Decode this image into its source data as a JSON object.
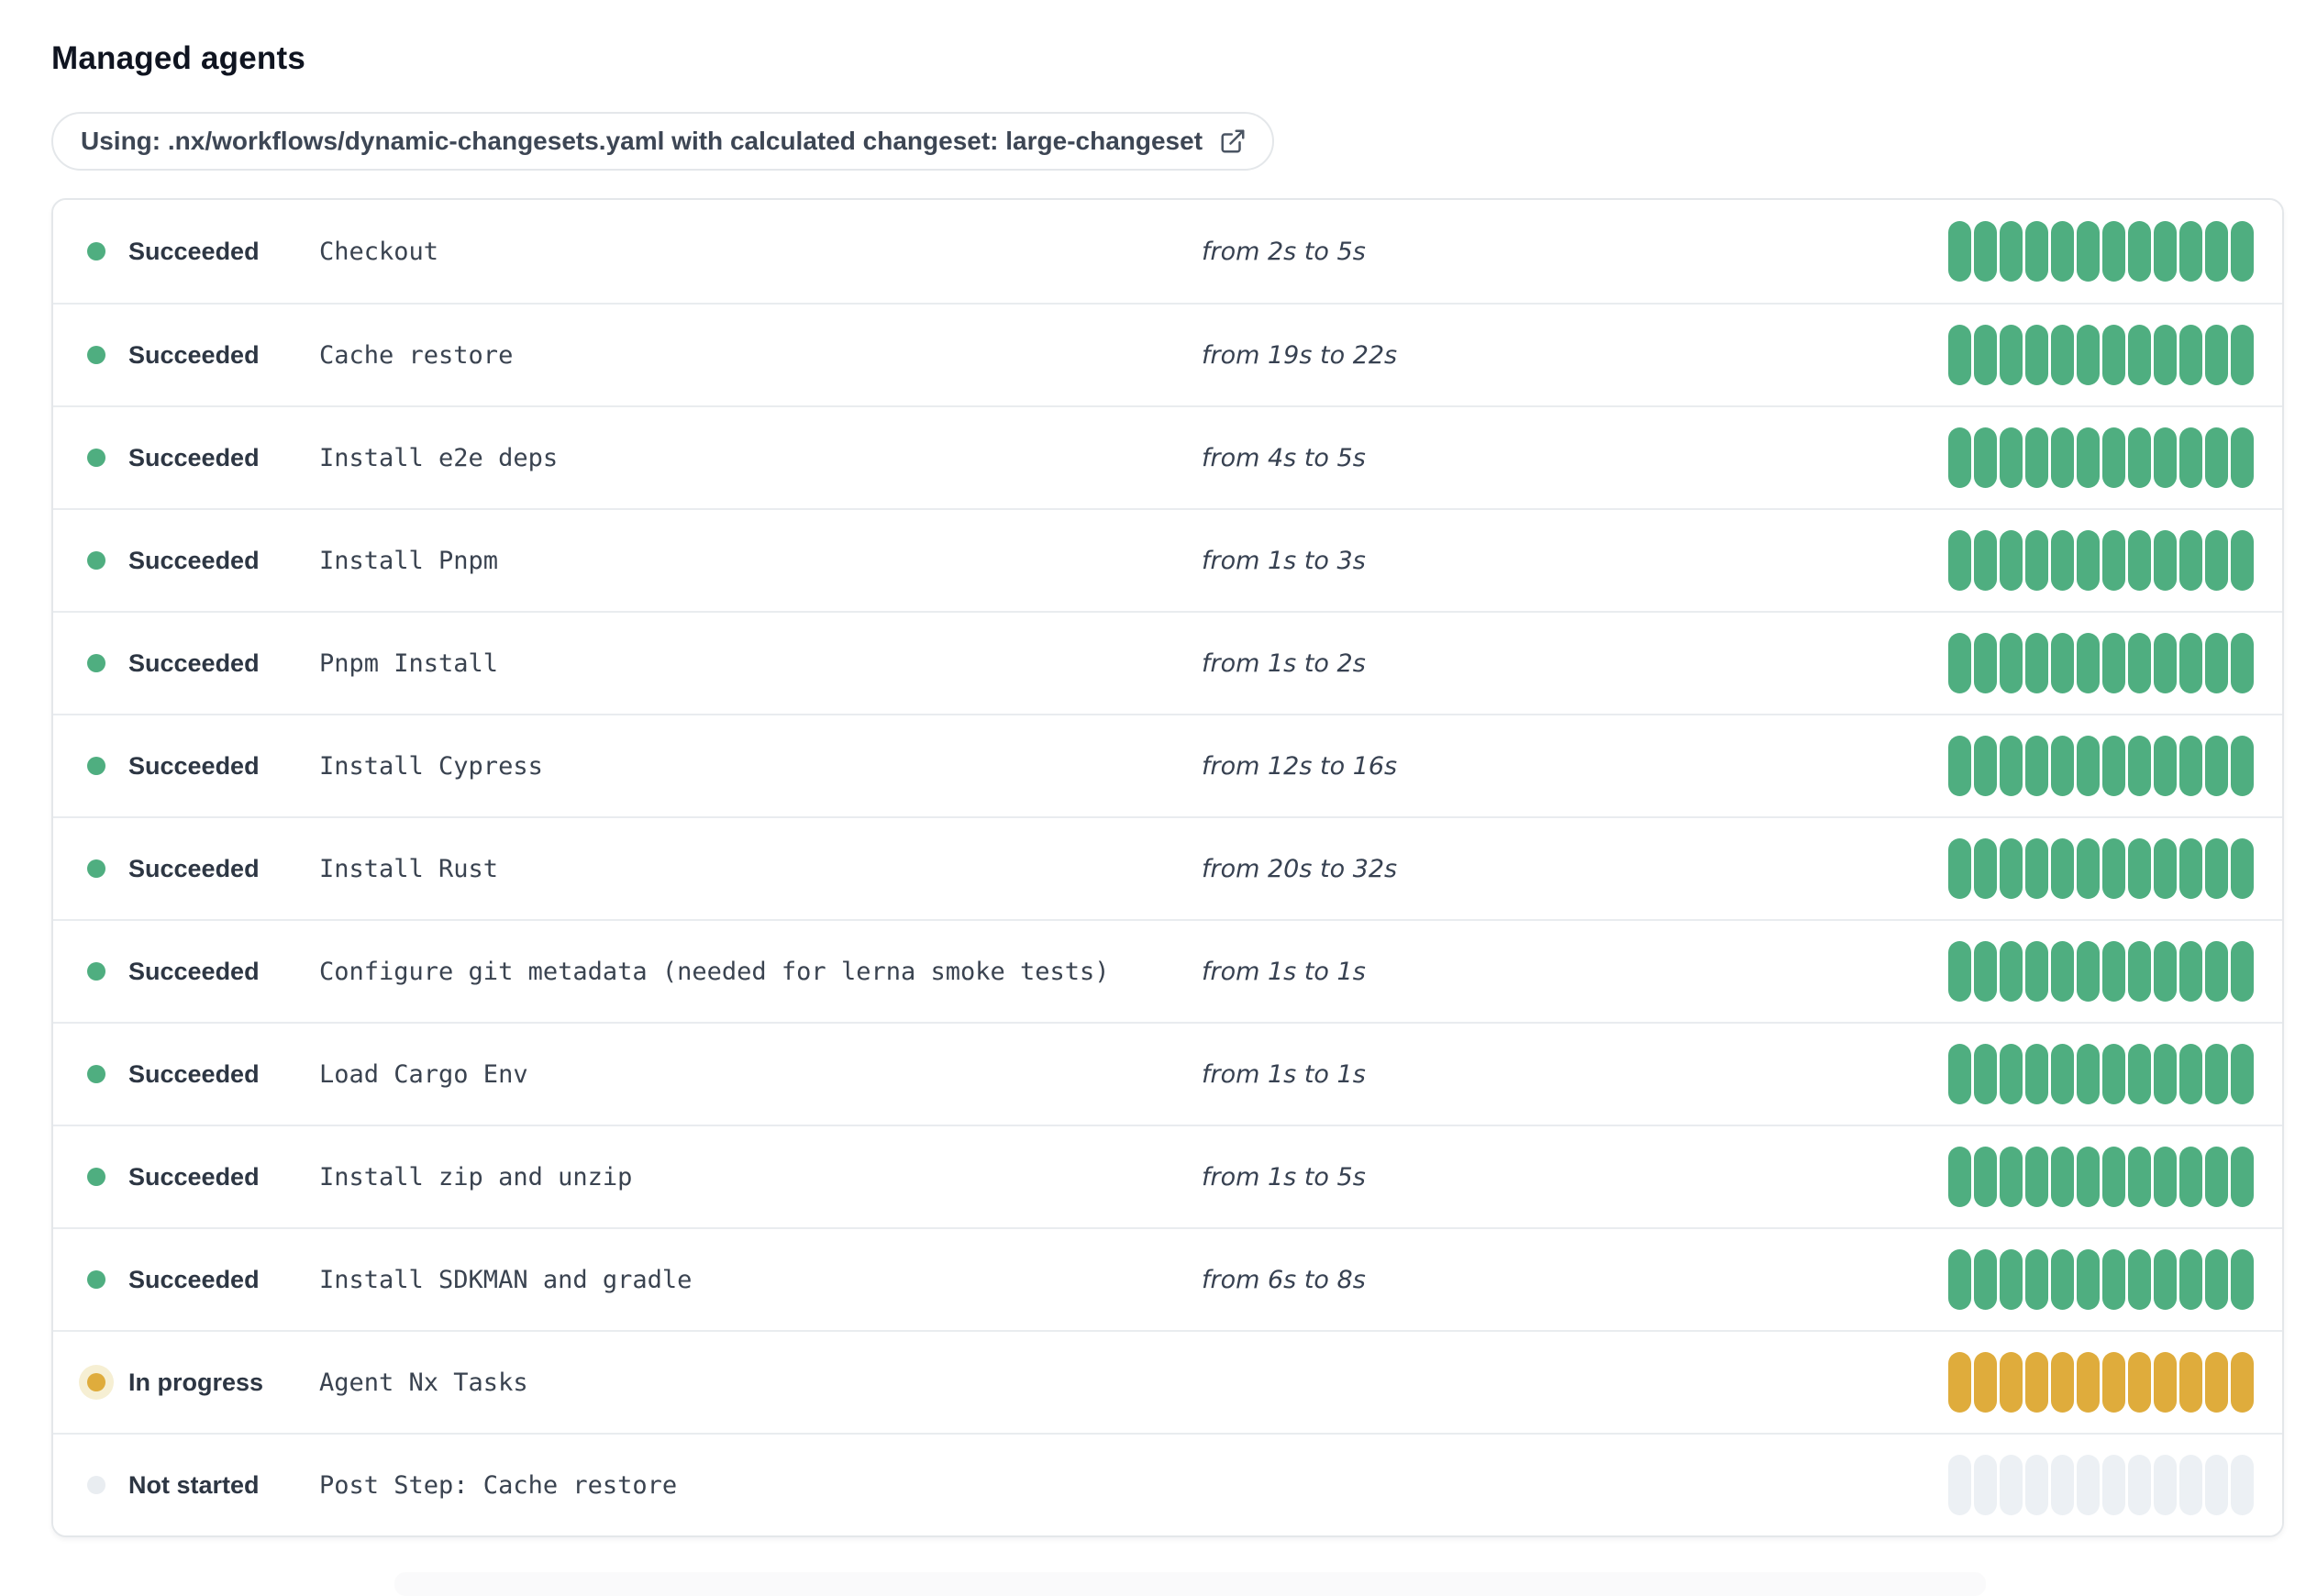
{
  "title": "Managed agents",
  "workflow_banner": {
    "label": "Using: .nx/workflows/dynamic-changesets.yaml with calculated changeset: large-changeset",
    "icon": "external-link-icon"
  },
  "segments_per_row": 12,
  "status_colors": {
    "succeeded": "#4FAE80",
    "in_progress": "#DFAC3C",
    "in_progress_halo": "#F6EFD3",
    "not_started_dot": "#E9EDF1",
    "not_started_segment": "#ECF0F4"
  },
  "rows": [
    {
      "status": "Succeeded",
      "state": "succeeded",
      "step": "Checkout",
      "range": "from 2s to 5s"
    },
    {
      "status": "Succeeded",
      "state": "succeeded",
      "step": "Cache restore",
      "range": "from 19s to 22s"
    },
    {
      "status": "Succeeded",
      "state": "succeeded",
      "step": "Install e2e deps",
      "range": "from 4s to 5s"
    },
    {
      "status": "Succeeded",
      "state": "succeeded",
      "step": "Install Pnpm",
      "range": "from 1s to 3s"
    },
    {
      "status": "Succeeded",
      "state": "succeeded",
      "step": "Pnpm Install",
      "range": "from 1s to 2s"
    },
    {
      "status": "Succeeded",
      "state": "succeeded",
      "step": "Install Cypress",
      "range": "from 12s to 16s"
    },
    {
      "status": "Succeeded",
      "state": "succeeded",
      "step": "Install Rust",
      "range": "from 20s to 32s"
    },
    {
      "status": "Succeeded",
      "state": "succeeded",
      "step": "Configure git metadata (needed for lerna smoke tests)",
      "range": "from 1s to 1s"
    },
    {
      "status": "Succeeded",
      "state": "succeeded",
      "step": "Load Cargo Env",
      "range": "from 1s to 1s"
    },
    {
      "status": "Succeeded",
      "state": "succeeded",
      "step": "Install zip and unzip",
      "range": "from 1s to 5s"
    },
    {
      "status": "Succeeded",
      "state": "succeeded",
      "step": "Install SDKMAN and gradle",
      "range": "from 6s to 8s"
    },
    {
      "status": "In progress",
      "state": "in-progress",
      "step": "Agent Nx Tasks",
      "range": ""
    },
    {
      "status": "Not started",
      "state": "not-started",
      "step": "Post Step: Cache restore",
      "range": ""
    }
  ]
}
